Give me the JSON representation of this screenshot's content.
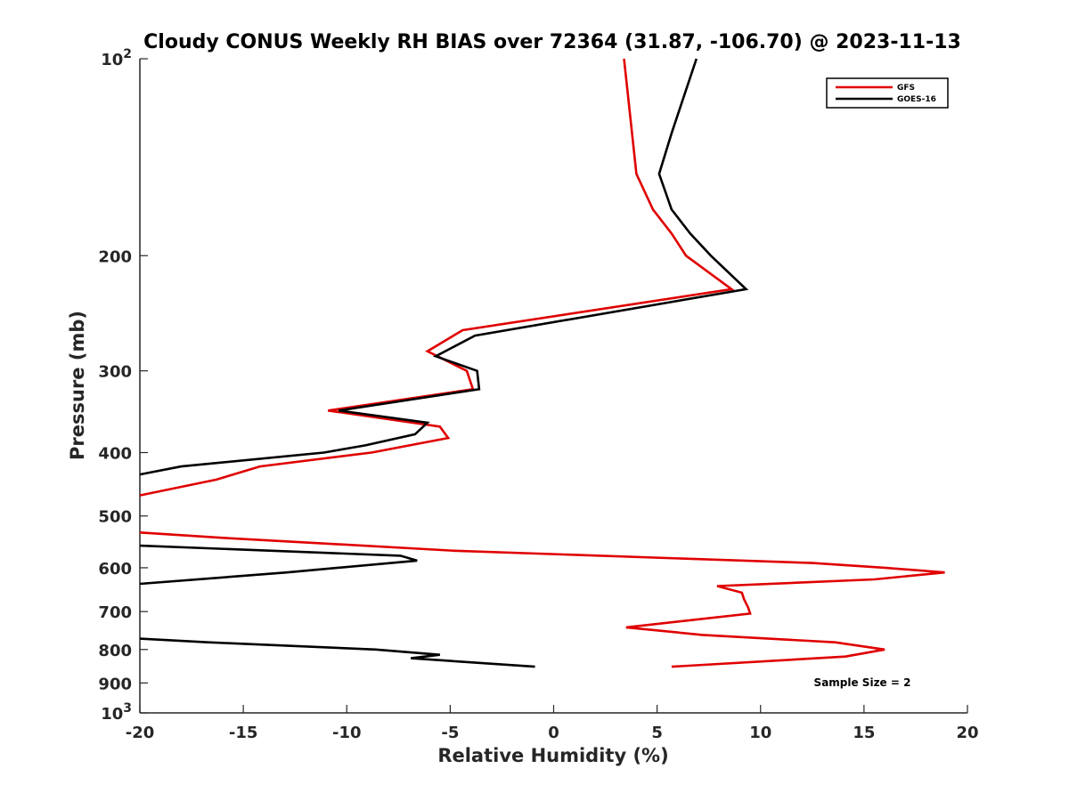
{
  "chart_data": {
    "type": "line",
    "title": "Cloudy CONUS Weekly RH BIAS over 72364 (31.87, -106.70) @ 2023-11-13",
    "xlabel": "Relative Humidity (%)",
    "ylabel": "Pressure (mb)",
    "xlim": [
      -20,
      20
    ],
    "ylim": [
      100,
      1000
    ],
    "yscale": "log",
    "y_reversed": true,
    "xticks": [
      -20,
      -15,
      -10,
      -5,
      0,
      5,
      10,
      15,
      20
    ],
    "yticks": [
      {
        "value": 100,
        "base": "10",
        "exp": "2"
      },
      {
        "value": 200,
        "label": "200"
      },
      {
        "value": 300,
        "label": "300"
      },
      {
        "value": 400,
        "label": "400"
      },
      {
        "value": 500,
        "label": "500"
      },
      {
        "value": 600,
        "label": "600"
      },
      {
        "value": 700,
        "label": "700"
      },
      {
        "value": 800,
        "label": "800"
      },
      {
        "value": 900,
        "label": "900"
      },
      {
        "value": 1000,
        "base": "10",
        "exp": "3"
      }
    ],
    "grid": false,
    "legend_position": "top-right",
    "annotation": "Sample Size = 2",
    "series": [
      {
        "name": "GFS",
        "color": "#e00000",
        "points": [
          [
            3.4,
            100
          ],
          [
            4.0,
            150
          ],
          [
            4.8,
            170
          ],
          [
            5.7,
            185
          ],
          [
            6.4,
            200
          ],
          [
            8.6,
            225
          ],
          [
            -4.4,
            260
          ],
          [
            -6.1,
            280
          ],
          [
            -4.2,
            300
          ],
          [
            -3.9,
            320
          ],
          [
            -10.9,
            345
          ],
          [
            -5.5,
            365
          ],
          [
            -5.1,
            380
          ],
          [
            -8.8,
            400
          ],
          [
            -14.2,
            420
          ],
          [
            -16.3,
            440
          ],
          [
            -20.0,
            465
          ]
        ],
        "segments": [
          [
            [
              -20.0,
              530
            ],
            [
              -16.0,
              540
            ],
            [
              -4.8,
              565
            ],
            [
              12.5,
              590
            ],
            [
              16.0,
              600
            ],
            [
              18.9,
              610
            ],
            [
              15.5,
              625
            ],
            [
              7.9,
              640
            ],
            [
              9.1,
              655
            ],
            [
              9.2,
              670
            ],
            [
              9.4,
              690
            ],
            [
              9.5,
              705
            ],
            [
              3.5,
              740
            ],
            [
              7.2,
              760
            ],
            [
              13.6,
              780
            ],
            [
              16.0,
              800
            ],
            [
              14.1,
              820
            ],
            [
              5.7,
              850
            ]
          ]
        ]
      },
      {
        "name": "GOES-16",
        "color": "#000000",
        "points": [
          [
            6.9,
            100
          ],
          [
            5.7,
            130
          ],
          [
            5.1,
            150
          ],
          [
            5.7,
            170
          ],
          [
            6.6,
            185
          ],
          [
            7.6,
            200
          ],
          [
            9.3,
            225
          ],
          [
            -3.8,
            265
          ],
          [
            -5.7,
            285
          ],
          [
            -3.7,
            300
          ],
          [
            -3.6,
            320
          ],
          [
            -10.4,
            345
          ],
          [
            -6.1,
            360
          ],
          [
            -6.7,
            375
          ],
          [
            -9.1,
            390
          ],
          [
            -11.1,
            400
          ],
          [
            -18.0,
            420
          ],
          [
            -20.0,
            432
          ]
        ],
        "segments": [
          [
            [
              -20.0,
              555
            ],
            [
              -7.4,
              575
            ],
            [
              -6.6,
              585
            ],
            [
              -12.9,
              610
            ],
            [
              -20.0,
              635
            ]
          ],
          [
            [
              -20.0,
              770
            ],
            [
              -16.7,
              780
            ],
            [
              -8.6,
              800
            ],
            [
              -5.5,
              815
            ],
            [
              -6.9,
              825
            ],
            [
              -0.9,
              850
            ]
          ]
        ]
      }
    ]
  }
}
